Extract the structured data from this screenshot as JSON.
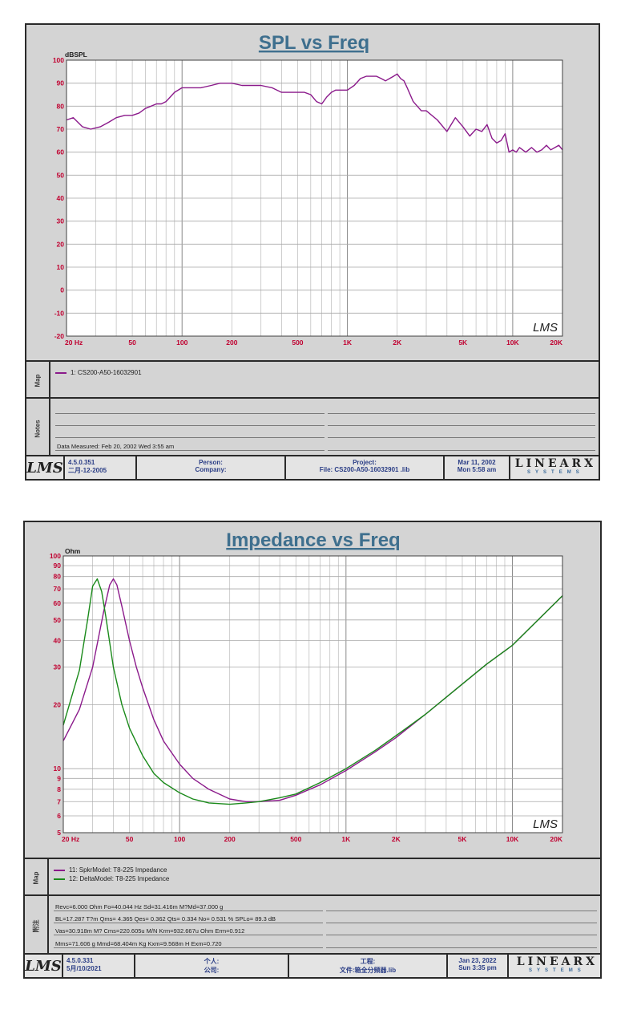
{
  "chart_data": [
    {
      "type": "line",
      "title": "SPL vs Freq",
      "ylabel": "dBSPL",
      "xscale": "log",
      "xlim": [
        20,
        20000
      ],
      "ylim": [
        -20,
        100
      ],
      "grid": true,
      "xticks": [
        "20  Hz",
        "50",
        "100",
        "200",
        "500",
        "1K",
        "2K",
        "5K",
        "10K",
        "20K"
      ],
      "yticks": [
        "100",
        "90",
        "80",
        "70",
        "60",
        "50",
        "40",
        "30",
        "20",
        "10",
        "0",
        "-10",
        "-20"
      ],
      "watermark": "LMS",
      "series": [
        {
          "name": "1: CS200-A50-16032901",
          "color": "#8b1a8b",
          "x": [
            20,
            22,
            25,
            28,
            32,
            36,
            40,
            45,
            50,
            55,
            60,
            65,
            70,
            75,
            80,
            90,
            100,
            110,
            130,
            150,
            170,
            200,
            230,
            260,
            300,
            350,
            400,
            450,
            500,
            550,
            600,
            650,
            700,
            750,
            800,
            850,
            900,
            1000,
            1100,
            1200,
            1300,
            1400,
            1500,
            1600,
            1700,
            1800,
            1900,
            2000,
            2100,
            2200,
            2300,
            2500,
            2800,
            3000,
            3500,
            4000,
            4500,
            5000,
            5500,
            6000,
            6500,
            7000,
            7500,
            8000,
            8500,
            9000,
            9500,
            10000,
            10500,
            11000,
            12000,
            13000,
            14000,
            15000,
            16000,
            17000,
            18000,
            19000,
            20000
          ],
          "y": [
            74,
            75,
            71,
            70,
            71,
            73,
            75,
            76,
            76,
            77,
            79,
            80,
            81,
            81,
            82,
            86,
            88,
            88,
            88,
            89,
            90,
            90,
            89,
            89,
            89,
            88,
            86,
            86,
            86,
            86,
            85,
            82,
            81,
            84,
            86,
            87,
            87,
            87,
            89,
            92,
            93,
            93,
            93,
            92,
            91,
            92,
            93,
            94,
            92,
            91,
            88,
            82,
            78,
            78,
            74,
            69,
            75,
            71,
            67,
            70,
            69,
            72,
            66,
            64,
            65,
            68,
            60,
            61,
            60,
            62,
            60,
            62,
            60,
            61,
            63,
            61,
            62,
            63,
            61
          ]
        }
      ]
    },
    {
      "type": "line",
      "title": "Impedance vs Freq",
      "ylabel": "Ohm",
      "xscale": "log",
      "yscale": "log",
      "xlim": [
        20,
        20000
      ],
      "ylim": [
        5,
        100
      ],
      "grid": true,
      "xticks": [
        "20  Hz",
        "50",
        "100",
        "200",
        "500",
        "1K",
        "2K",
        "5K",
        "10K",
        "20K"
      ],
      "yticks": [
        "100",
        "90",
        "80",
        "70",
        "60",
        "50",
        "40",
        "30",
        "20",
        "10",
        "9",
        "8",
        "7",
        "6",
        "5"
      ],
      "watermark": "LMS",
      "series": [
        {
          "name": "11: SpkrModel: T8-225 Impedance",
          "color": "#8b1a8b",
          "x": [
            20,
            25,
            30,
            35,
            38,
            40,
            42,
            45,
            50,
            55,
            60,
            70,
            80,
            100,
            120,
            150,
            200,
            250,
            300,
            400,
            500,
            700,
            1000,
            1500,
            2000,
            3000,
            5000,
            7000,
            10000,
            15000,
            20000
          ],
          "y": [
            13.5,
            19,
            30,
            55,
            73,
            78,
            73,
            58,
            40,
            30,
            24,
            17,
            13.5,
            10.5,
            9,
            8,
            7.2,
            7,
            7,
            7.1,
            7.5,
            8.4,
            9.8,
            12,
            14,
            18,
            25,
            31,
            38,
            52,
            65
          ]
        },
        {
          "name": "12: DeltaModel: T8-225 Impedance",
          "color": "#1a8a1a",
          "x": [
            20,
            25,
            28,
            30,
            32,
            34,
            36,
            40,
            45,
            50,
            60,
            70,
            80,
            100,
            120,
            150,
            200,
            250,
            300,
            400,
            500,
            700,
            1000,
            1500,
            2000,
            3000,
            5000,
            7000,
            10000,
            15000,
            20000
          ],
          "y": [
            16,
            29,
            50,
            72,
            78,
            68,
            52,
            30,
            20,
            15.5,
            11.5,
            9.5,
            8.6,
            7.7,
            7.2,
            6.9,
            6.8,
            6.9,
            7,
            7.3,
            7.6,
            8.6,
            10,
            12.2,
            14.3,
            18,
            25,
            31,
            38,
            52,
            65
          ]
        }
      ]
    }
  ],
  "panel1": {
    "notes_label": "Notes",
    "map_label": "Map",
    "notes": [
      "Data Measured: Feb 20, 2002  Wed  3:55 am"
    ],
    "footer": {
      "logo": "LMS",
      "version": "4.5.0.351",
      "version_date": "二月-12-2005",
      "person_label": "Person:",
      "company_label": "Company:",
      "project_label": "Project:",
      "file_label": "File: CS200-A50-16032901 .lib",
      "date": "Mar 11, 2002",
      "time": "Mon   5:58 am",
      "brand": "LINEARX",
      "brand_sub": "SYSTEMS"
    }
  },
  "panel2": {
    "notes_label": "附注",
    "map_label": "Map",
    "notes": [
      "Revc=6.000 Ohm  Fo=40.044 Hz  Sd=31.416m M?Md=37.000 g",
      "BL=17.287 T?m  Qms= 4.365  Qes= 0.362  Qts= 0.334  No= 0.531 %  SPLo= 89.3 dB",
      "Vas=30.918m M? Cms=220.605u M/N  Krm=932.667u Ohm  Erm=0.912",
      "Mms=71.606 g  Mmd=68.404m Kg  Kxm=9.568m H  Exm=0.720"
    ],
    "footer": {
      "logo": "LMS",
      "version": "4.5.0.331",
      "version_date": "5月/10/2021",
      "person_label": "个人:",
      "company_label": "公司:",
      "project_label": "工程:",
      "file_label": "文件:箱全分频器.lib",
      "date": "Jan 23, 2022",
      "time": "Sun   3:35 pm",
      "brand": "LINEARX",
      "brand_sub": "SYSTEMS"
    }
  }
}
